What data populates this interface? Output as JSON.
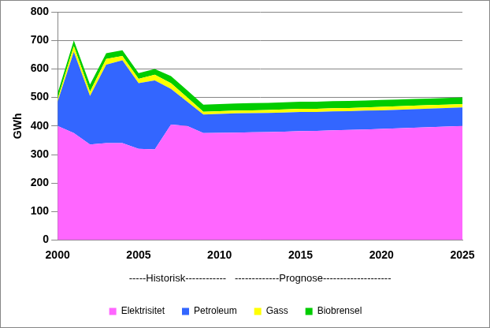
{
  "chart_data": {
    "type": "area",
    "stacked": true,
    "ylabel": "GWh",
    "xlabel": "-----Historisk------------   -------------Prognose--------------------",
    "x": [
      2000,
      2001,
      2002,
      2003,
      2004,
      2005,
      2006,
      2007,
      2008,
      2009,
      2010,
      2011,
      2012,
      2013,
      2014,
      2015,
      2016,
      2017,
      2018,
      2019,
      2020,
      2021,
      2022,
      2023,
      2024,
      2025
    ],
    "xlim": [
      2000,
      2025
    ],
    "xticks": [
      2000,
      2005,
      2010,
      2015,
      2020,
      2025
    ],
    "ylim": [
      0,
      800
    ],
    "yticks": [
      0,
      100,
      200,
      300,
      400,
      500,
      600,
      700,
      800
    ],
    "grid": "y",
    "legend": "bottom",
    "series": [
      {
        "name": "Elektrisitet",
        "color": "#ff66ff",
        "values": [
          400,
          375,
          335,
          340,
          340,
          320,
          318,
          405,
          400,
          375,
          376,
          377,
          378,
          379,
          380,
          382,
          383,
          385,
          386,
          388,
          390,
          392,
          394,
          396,
          398,
          400
        ]
      },
      {
        "name": "Petroleum",
        "color": "#3366ff",
        "values": [
          85,
          285,
          170,
          275,
          290,
          230,
          242,
          125,
          85,
          65,
          66,
          67,
          67,
          67,
          67,
          67,
          66,
          66,
          66,
          66,
          65,
          65,
          65,
          65,
          65,
          65
        ]
      },
      {
        "name": "Gass",
        "color": "#ffff00",
        "values": [
          10,
          20,
          15,
          20,
          15,
          15,
          20,
          20,
          15,
          10,
          10,
          10,
          10,
          10,
          11,
          11,
          11,
          11,
          11,
          11,
          12,
          12,
          12,
          12,
          12,
          12
        ]
      },
      {
        "name": "Biobrensel",
        "color": "#00cc00",
        "values": [
          20,
          20,
          25,
          20,
          20,
          20,
          20,
          25,
          25,
          25,
          25,
          25,
          25,
          25,
          25,
          25,
          25,
          25,
          25,
          24,
          24,
          24,
          24,
          23,
          23,
          23
        ]
      }
    ]
  }
}
